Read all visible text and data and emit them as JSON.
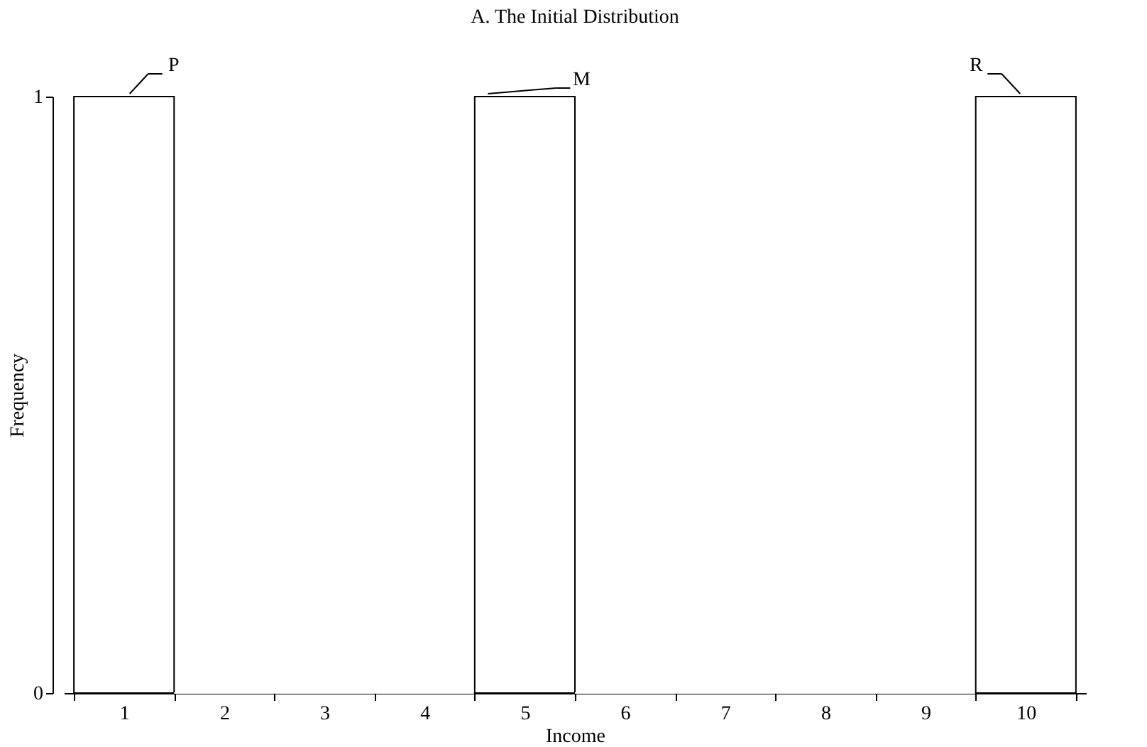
{
  "chart_data": {
    "type": "bar",
    "title": "A. The Initial Distribution",
    "xlabel": "Income",
    "ylabel": "Frequency",
    "categories": [
      "1",
      "2",
      "3",
      "4",
      "5",
      "6",
      "7",
      "8",
      "9",
      "10"
    ],
    "values": [
      1,
      0,
      0,
      0,
      1,
      0,
      0,
      0,
      0,
      1
    ],
    "color": "#ffffff",
    "ylim": [
      0,
      1
    ],
    "yticks": [
      0,
      1
    ],
    "annotations": [
      {
        "text": "P",
        "x": "1",
        "y": 1
      },
      {
        "text": "M",
        "x": "5",
        "y": 1
      },
      {
        "text": "R",
        "x": "10",
        "y": 1
      }
    ]
  }
}
